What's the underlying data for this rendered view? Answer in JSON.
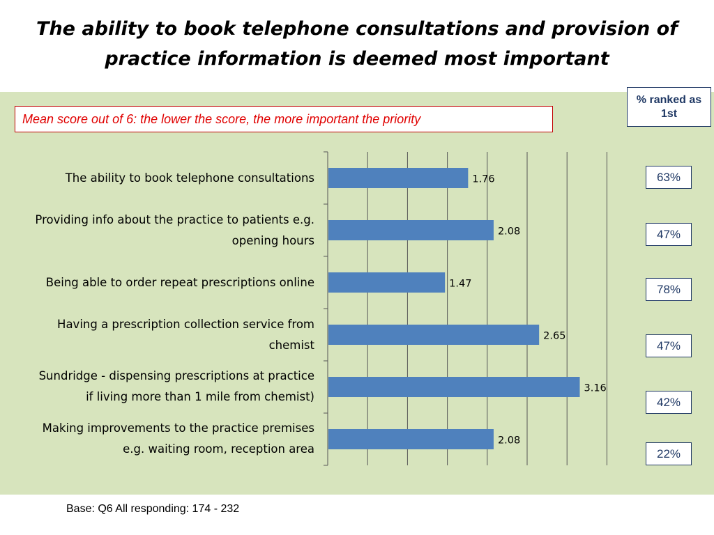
{
  "title": "The ability to book telephone consultations and provision of practice information is deemed most important",
  "subtitle": "Mean score out of 6: the lower the score, the more important the priority",
  "rank_header": "% ranked as 1st",
  "footer": "Base: Q6 All responding: 174 - 232",
  "colors": {
    "bar": "#4f81bd",
    "panel": "#d7e4bd",
    "subtitle_text": "#e00000"
  },
  "chart_data": {
    "type": "bar",
    "orientation": "horizontal",
    "categories": [
      "The ability to book telephone consultations",
      "Providing info about the practice to patients e.g. opening hours",
      "Being able to order repeat prescriptions online",
      "Having a prescription collection service from chemist",
      "Sundridge - dispensing prescriptions at practice if living more than 1 mile from chemist)",
      "Making improvements to the practice premises e.g. waiting room, reception area"
    ],
    "values": [
      1.76,
      2.08,
      1.47,
      2.65,
      3.16,
      2.08
    ],
    "data_labels": [
      "1.76",
      "2.08",
      "1.47",
      "2.65",
      "3.16",
      "2.08"
    ],
    "ranked_first": [
      "63%",
      "47%",
      "78%",
      "47%",
      "42%",
      "22%"
    ],
    "xlim": [
      0,
      3.5
    ],
    "grid": true
  }
}
